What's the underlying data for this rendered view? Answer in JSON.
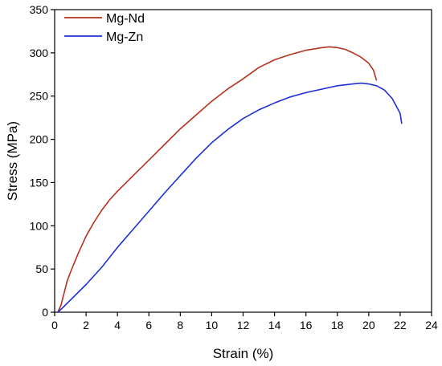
{
  "chart_data": {
    "type": "line",
    "xlabel": "Strain (%)",
    "ylabel": "Stress (MPa)",
    "xlim": [
      0,
      24
    ],
    "ylim": [
      0,
      350
    ],
    "xticks": [
      0,
      2,
      4,
      6,
      8,
      10,
      12,
      14,
      16,
      18,
      20,
      22,
      24
    ],
    "yticks": [
      0,
      50,
      100,
      150,
      200,
      250,
      300,
      350
    ],
    "grid": false,
    "legend_position": "top-left",
    "series": [
      {
        "name": "Mg-Nd",
        "color": "#b5311e",
        "x": [
          0.2,
          0.4,
          0.6,
          0.8,
          1.0,
          1.5,
          2.0,
          2.5,
          3.0,
          3.5,
          4.0,
          5.0,
          6.0,
          7.0,
          8.0,
          9.0,
          10.0,
          11.0,
          12.0,
          13.0,
          14.0,
          15.0,
          16.0,
          17.0,
          17.5,
          18.0,
          18.5,
          19.0,
          19.5,
          20.0,
          20.3,
          20.5
        ],
        "y": [
          0,
          8,
          22,
          36,
          46,
          68,
          88,
          104,
          118,
          130,
          140,
          158,
          176,
          194,
          212,
          228,
          244,
          258,
          270,
          283,
          292,
          298,
          303,
          306,
          307,
          306,
          304,
          300,
          295,
          288,
          280,
          268
        ]
      },
      {
        "name": "Mg-Zn",
        "color": "#1f2fd6",
        "x": [
          0.2,
          0.5,
          1.0,
          2.0,
          3.0,
          4.0,
          5.0,
          6.0,
          7.0,
          8.0,
          9.0,
          10.0,
          11.0,
          12.0,
          13.0,
          14.0,
          15.0,
          16.0,
          17.0,
          18.0,
          19.0,
          19.5,
          20.0,
          20.5,
          21.0,
          21.5,
          22.0,
          22.1
        ],
        "y": [
          0,
          5,
          14,
          32,
          52,
          75,
          96,
          117,
          138,
          158,
          178,
          196,
          211,
          224,
          234,
          242,
          249,
          254,
          258,
          262,
          264,
          265,
          264,
          262,
          257,
          247,
          230,
          218
        ]
      }
    ]
  }
}
